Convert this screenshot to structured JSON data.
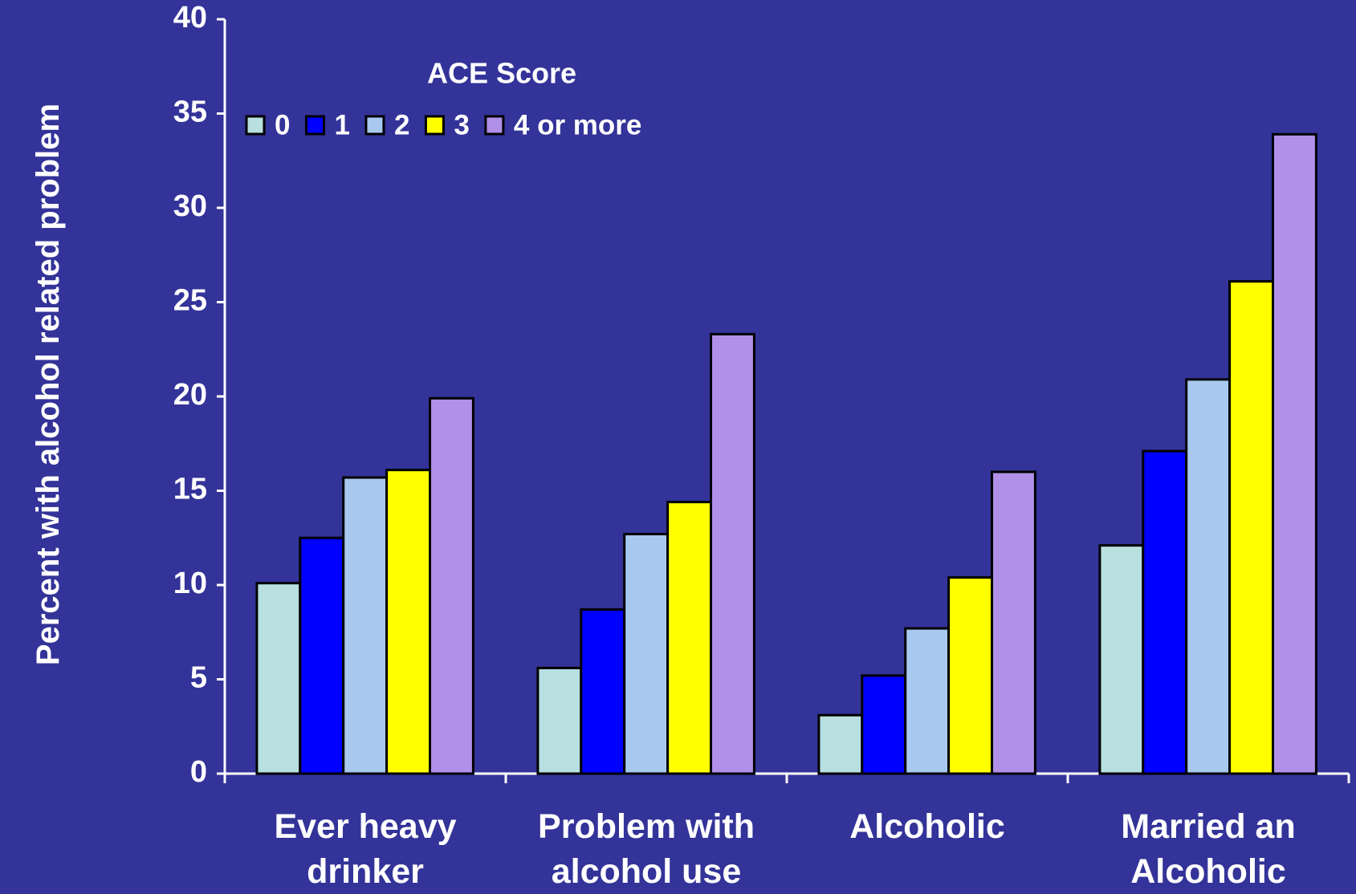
{
  "chart_data": {
    "type": "bar",
    "y_label": "Percent with alcohol related problem",
    "legend_title": "ACE Score",
    "categories": [
      "Ever heavy drinker",
      "Problem with alcohol use",
      "Alcoholic",
      "Married an Alcoholic"
    ],
    "series": [
      {
        "name": "0",
        "color": "#b8e0e0",
        "values": [
          10.1,
          5.6,
          3.1,
          12.1
        ]
      },
      {
        "name": "1",
        "color": "#0000ff",
        "values": [
          12.5,
          8.7,
          5.2,
          17.1
        ]
      },
      {
        "name": "2",
        "color": "#a8c8f0",
        "values": [
          15.7,
          12.7,
          7.7,
          20.9
        ]
      },
      {
        "name": "3",
        "color": "#ffff00",
        "values": [
          16.1,
          14.4,
          10.4,
          26.1
        ]
      },
      {
        "name": "4 or more",
        "color": "#b090e8",
        "values": [
          19.9,
          23.3,
          16.0,
          33.9
        ]
      }
    ],
    "ylim": [
      0,
      40
    ],
    "yticks": [
      0,
      5,
      10,
      15,
      20,
      25,
      30,
      35,
      40
    ],
    "grid": false
  }
}
